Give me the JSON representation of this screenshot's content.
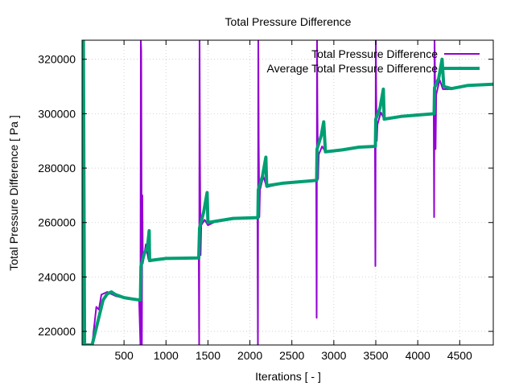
{
  "chart_data": {
    "type": "line",
    "title": "Total Pressure Difference",
    "xlabel": "Iterations [ - ]",
    "ylabel": "Total Pressure Difference [ Pa ]",
    "xlim": [
      0,
      4900
    ],
    "ylim": [
      215000,
      327000
    ],
    "grid": true,
    "legend_position": "top-right",
    "xticks": [
      500,
      1000,
      1500,
      2000,
      2500,
      3000,
      3500,
      4000,
      4500
    ],
    "yticks": [
      220000,
      240000,
      260000,
      280000,
      300000,
      320000
    ],
    "xtick_labels": [
      "500",
      "1000",
      "1500",
      "2000",
      "2500",
      "3000",
      "3500",
      "4000",
      "4500"
    ],
    "ytick_labels": [
      "220000",
      "240000",
      "260000",
      "280000",
      "300000",
      "320000"
    ],
    "series": [
      {
        "name": "Total Pressure Difference",
        "color": "#9400d3",
        "points": [
          [
            0,
            215000
          ],
          [
            15,
            327000
          ],
          [
            25,
            284000
          ],
          [
            30,
            215000
          ],
          [
            120,
            215000
          ],
          [
            170,
            229000
          ],
          [
            200,
            228000
          ],
          [
            230,
            233500
          ],
          [
            300,
            234500
          ],
          [
            330,
            234000
          ],
          [
            400,
            233000
          ],
          [
            500,
            232300
          ],
          [
            600,
            231800
          ],
          [
            680,
            231500
          ],
          [
            695,
            215000
          ],
          [
            700,
            327000
          ],
          [
            705,
            323000
          ],
          [
            712,
            215000
          ],
          [
            718,
            270000
          ],
          [
            724,
            245000
          ],
          [
            760,
            252000
          ],
          [
            790,
            246500
          ],
          [
            850,
            246300
          ],
          [
            1000,
            246800
          ],
          [
            1200,
            247000
          ],
          [
            1390,
            247000
          ],
          [
            1395,
            215000
          ],
          [
            1400,
            327000
          ],
          [
            1405,
            283000
          ],
          [
            1412,
            248000
          ],
          [
            1420,
            259000
          ],
          [
            1460,
            261000
          ],
          [
            1500,
            259000
          ],
          [
            1600,
            260500
          ],
          [
            1800,
            261500
          ],
          [
            2090,
            261800
          ],
          [
            2095,
            215000
          ],
          [
            2100,
            327000
          ],
          [
            2105,
            290000
          ],
          [
            2112,
            262000
          ],
          [
            2120,
            272000
          ],
          [
            2160,
            277000
          ],
          [
            2200,
            273000
          ],
          [
            2400,
            274500
          ],
          [
            2600,
            275200
          ],
          [
            2790,
            275500
          ],
          [
            2795,
            225000
          ],
          [
            2800,
            327000
          ],
          [
            2805,
            299000
          ],
          [
            2812,
            276000
          ],
          [
            2820,
            285000
          ],
          [
            2860,
            288000
          ],
          [
            2900,
            286000
          ],
          [
            3100,
            286800
          ],
          [
            3300,
            287700
          ],
          [
            3490,
            288000
          ],
          [
            3495,
            244000
          ],
          [
            3500,
            327000
          ],
          [
            3505,
            307000
          ],
          [
            3512,
            290000
          ],
          [
            3520,
            296000
          ],
          [
            3560,
            300500
          ],
          [
            3600,
            298000
          ],
          [
            3800,
            299000
          ],
          [
            4000,
            299800
          ],
          [
            4190,
            300000
          ],
          [
            4195,
            262000
          ],
          [
            4200,
            327000
          ],
          [
            4205,
            317000
          ],
          [
            4212,
            287000
          ],
          [
            4220,
            307000
          ],
          [
            4260,
            312500
          ],
          [
            4300,
            309000
          ],
          [
            4400,
            309000
          ],
          [
            4600,
            310400
          ],
          [
            4900,
            310800
          ]
        ]
      },
      {
        "name": "Average Total Pressure Difference",
        "color": "#009e73",
        "points": [
          [
            0,
            215000
          ],
          [
            15,
            327000
          ],
          [
            30,
            215000
          ],
          [
            120,
            215000
          ],
          [
            250,
            231500
          ],
          [
            300,
            233800
          ],
          [
            350,
            234500
          ],
          [
            400,
            233500
          ],
          [
            500,
            232400
          ],
          [
            600,
            231900
          ],
          [
            695,
            231500
          ],
          [
            702,
            244000
          ],
          [
            740,
            248500
          ],
          [
            780,
            251000
          ],
          [
            800,
            257000
          ],
          [
            805,
            246000
          ],
          [
            850,
            246200
          ],
          [
            1000,
            246800
          ],
          [
            1390,
            247000
          ],
          [
            1400,
            258000
          ],
          [
            1450,
            264000
          ],
          [
            1490,
            271000
          ],
          [
            1500,
            260000
          ],
          [
            1600,
            260500
          ],
          [
            1800,
            261500
          ],
          [
            2095,
            261800
          ],
          [
            2100,
            272000
          ],
          [
            2150,
            277000
          ],
          [
            2190,
            284000
          ],
          [
            2200,
            273500
          ],
          [
            2400,
            274500
          ],
          [
            2795,
            275500
          ],
          [
            2800,
            287000
          ],
          [
            2850,
            292000
          ],
          [
            2880,
            297000
          ],
          [
            2900,
            286000
          ],
          [
            3100,
            286700
          ],
          [
            3300,
            287700
          ],
          [
            3495,
            288000
          ],
          [
            3500,
            298000
          ],
          [
            3550,
            302000
          ],
          [
            3590,
            309000
          ],
          [
            3600,
            298000
          ],
          [
            3800,
            299000
          ],
          [
            4195,
            300000
          ],
          [
            4200,
            309500
          ],
          [
            4250,
            313000
          ],
          [
            4290,
            320000
          ],
          [
            4310,
            310000
          ],
          [
            4400,
            309200
          ],
          [
            4600,
            310400
          ],
          [
            4900,
            310800
          ]
        ]
      }
    ]
  }
}
